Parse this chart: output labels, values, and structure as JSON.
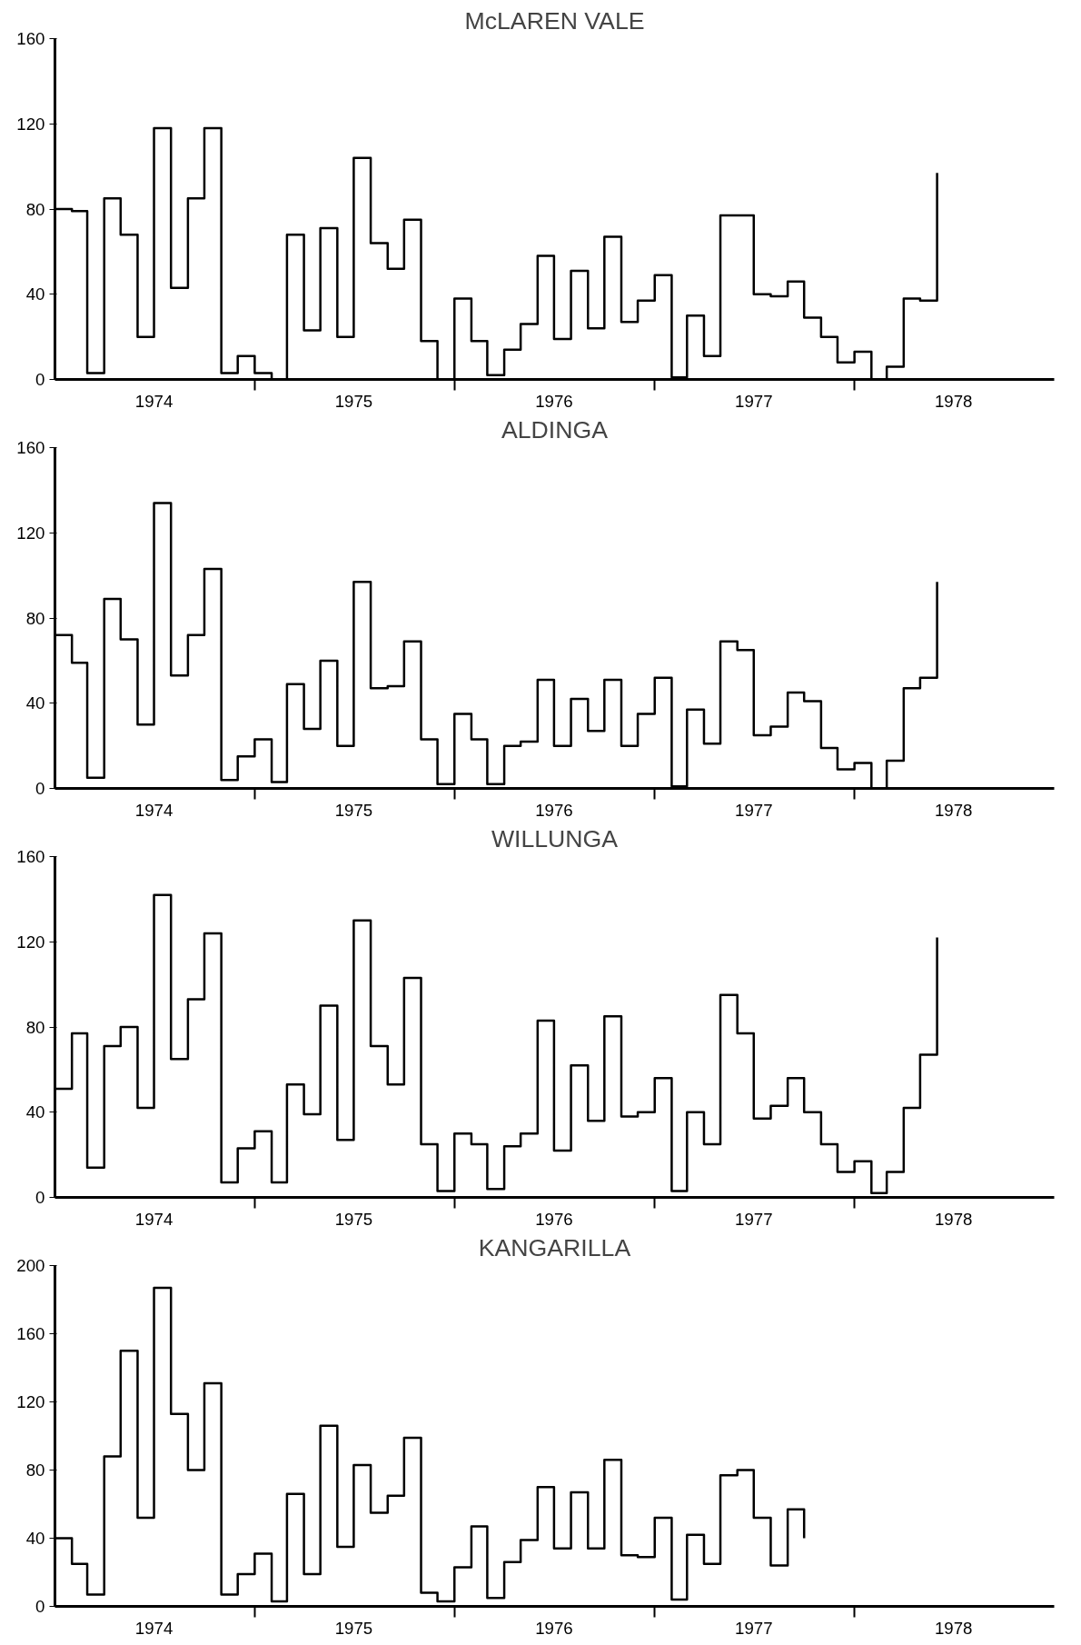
{
  "chart_data": [
    {
      "type": "step",
      "title": "McLAREN VALE",
      "color": "#000000",
      "x": [
        "1974-01",
        "1974-02",
        "1974-03",
        "1974-04",
        "1974-05",
        "1974-06",
        "1974-07",
        "1974-08",
        "1974-09",
        "1974-10",
        "1974-11",
        "1974-12",
        "1975-01",
        "1975-02",
        "1975-03",
        "1975-04",
        "1975-05",
        "1975-06",
        "1975-07",
        "1975-08",
        "1975-09",
        "1975-10",
        "1975-11",
        "1975-12",
        "1976-01",
        "1976-02",
        "1976-03",
        "1976-04",
        "1976-05",
        "1976-06",
        "1976-07",
        "1976-08",
        "1976-09",
        "1976-10",
        "1976-11",
        "1976-12",
        "1977-01",
        "1977-02",
        "1977-03",
        "1977-04",
        "1977-05",
        "1977-06",
        "1977-07",
        "1977-08",
        "1977-09",
        "1977-10",
        "1977-11",
        "1977-12",
        "1978-01",
        "1978-02",
        "1978-03",
        "1978-04",
        "1978-05",
        "1978-06"
      ],
      "values": [
        80,
        79,
        3,
        85,
        68,
        20,
        118,
        43,
        85,
        118,
        3,
        11,
        3,
        0,
        68,
        23,
        71,
        20,
        104,
        64,
        52,
        75,
        18,
        0,
        38,
        18,
        2,
        14,
        26,
        58,
        19,
        51,
        24,
        67,
        27,
        37,
        49,
        1,
        30,
        11,
        77,
        77,
        40,
        39,
        46,
        29,
        20,
        8,
        13,
        0,
        6,
        38,
        37,
        97
      ],
      "ylim": [
        0,
        160
      ],
      "yticks": [
        0,
        40,
        80,
        120,
        160
      ],
      "xlim": [
        "1974-01",
        "1979-01"
      ],
      "xticks": [
        {
          "value": "1974-07",
          "label": "1974"
        },
        {
          "value": "1975-07",
          "label": "1975"
        },
        {
          "value": "1976-07",
          "label": "1976"
        },
        {
          "value": "1977-07",
          "label": "1977"
        },
        {
          "value": "1978-07",
          "label": "1978"
        },
        {
          "value": "1975-01",
          "label": null
        },
        {
          "value": "1976-01",
          "label": null
        },
        {
          "value": "1977-01",
          "label": null
        },
        {
          "value": "1978-01",
          "label": null
        }
      ]
    },
    {
      "type": "step",
      "title": "ALDINGA",
      "color": "#000000",
      "x": [
        "1974-01",
        "1974-02",
        "1974-03",
        "1974-04",
        "1974-05",
        "1974-06",
        "1974-07",
        "1974-08",
        "1974-09",
        "1974-10",
        "1974-11",
        "1974-12",
        "1975-01",
        "1975-02",
        "1975-03",
        "1975-04",
        "1975-05",
        "1975-06",
        "1975-07",
        "1975-08",
        "1975-09",
        "1975-10",
        "1975-11",
        "1975-12",
        "1976-01",
        "1976-02",
        "1976-03",
        "1976-04",
        "1976-05",
        "1976-06",
        "1976-07",
        "1976-08",
        "1976-09",
        "1976-10",
        "1976-11",
        "1976-12",
        "1977-01",
        "1977-02",
        "1977-03",
        "1977-04",
        "1977-05",
        "1977-06",
        "1977-07",
        "1977-08",
        "1977-09",
        "1977-10",
        "1977-11",
        "1977-12",
        "1978-01",
        "1978-02",
        "1978-03",
        "1978-04",
        "1978-05",
        "1978-06"
      ],
      "values": [
        72,
        59,
        5,
        89,
        70,
        30,
        134,
        53,
        72,
        103,
        4,
        15,
        23,
        3,
        49,
        28,
        60,
        20,
        97,
        47,
        48,
        69,
        23,
        2,
        35,
        23,
        2,
        20,
        22,
        51,
        20,
        42,
        27,
        51,
        20,
        35,
        52,
        1,
        37,
        21,
        69,
        65,
        25,
        29,
        45,
        41,
        19,
        9,
        12,
        0,
        13,
        47,
        52,
        97
      ],
      "ylim": [
        0,
        160
      ],
      "yticks": [
        0,
        40,
        80,
        120,
        160
      ],
      "xlim": [
        "1974-01",
        "1979-01"
      ],
      "xticks": [
        {
          "value": "1974-07",
          "label": "1974"
        },
        {
          "value": "1975-07",
          "label": "1975"
        },
        {
          "value": "1976-07",
          "label": "1976"
        },
        {
          "value": "1977-07",
          "label": "1977"
        },
        {
          "value": "1978-07",
          "label": "1978"
        },
        {
          "value": "1975-01",
          "label": null
        },
        {
          "value": "1976-01",
          "label": null
        },
        {
          "value": "1977-01",
          "label": null
        },
        {
          "value": "1978-01",
          "label": null
        }
      ]
    },
    {
      "type": "step",
      "title": "WILLUNGA",
      "color": "#000000",
      "x": [
        "1974-01",
        "1974-02",
        "1974-03",
        "1974-04",
        "1974-05",
        "1974-06",
        "1974-07",
        "1974-08",
        "1974-09",
        "1974-10",
        "1974-11",
        "1974-12",
        "1975-01",
        "1975-02",
        "1975-03",
        "1975-04",
        "1975-05",
        "1975-06",
        "1975-07",
        "1975-08",
        "1975-09",
        "1975-10",
        "1975-11",
        "1975-12",
        "1976-01",
        "1976-02",
        "1976-03",
        "1976-04",
        "1976-05",
        "1976-06",
        "1976-07",
        "1976-08",
        "1976-09",
        "1976-10",
        "1976-11",
        "1976-12",
        "1977-01",
        "1977-02",
        "1977-03",
        "1977-04",
        "1977-05",
        "1977-06",
        "1977-07",
        "1977-08",
        "1977-09",
        "1977-10",
        "1977-11",
        "1977-12",
        "1978-01",
        "1978-02",
        "1978-03",
        "1978-04",
        "1978-05",
        "1978-06"
      ],
      "values": [
        51,
        77,
        14,
        71,
        80,
        42,
        142,
        65,
        93,
        124,
        7,
        23,
        31,
        7,
        53,
        39,
        90,
        27,
        130,
        71,
        53,
        103,
        25,
        3,
        30,
        25,
        4,
        24,
        30,
        83,
        22,
        62,
        36,
        85,
        38,
        40,
        56,
        3,
        40,
        25,
        95,
        77,
        37,
        43,
        56,
        40,
        25,
        12,
        17,
        2,
        12,
        42,
        67,
        122
      ],
      "ylim": [
        0,
        160
      ],
      "yticks": [
        0,
        40,
        80,
        120,
        160
      ],
      "xlim": [
        "1974-01",
        "1979-01"
      ],
      "xticks": [
        {
          "value": "1974-07",
          "label": "1974"
        },
        {
          "value": "1975-07",
          "label": "1975"
        },
        {
          "value": "1976-07",
          "label": "1976"
        },
        {
          "value": "1977-07",
          "label": "1977"
        },
        {
          "value": "1978-07",
          "label": "1978"
        },
        {
          "value": "1975-01",
          "label": null
        },
        {
          "value": "1976-01",
          "label": null
        },
        {
          "value": "1977-01",
          "label": null
        },
        {
          "value": "1978-01",
          "label": null
        }
      ]
    },
    {
      "type": "step",
      "title": "KANGARILLA",
      "color": "#000000",
      "x": [
        "1974-01",
        "1974-02",
        "1974-03",
        "1974-04",
        "1974-05",
        "1974-06",
        "1974-07",
        "1974-08",
        "1974-09",
        "1974-10",
        "1974-11",
        "1974-12",
        "1975-01",
        "1975-02",
        "1975-03",
        "1975-04",
        "1975-05",
        "1975-06",
        "1975-07",
        "1975-08",
        "1975-09",
        "1975-10",
        "1975-11",
        "1975-12",
        "1976-01",
        "1976-02",
        "1976-03",
        "1976-04",
        "1976-05",
        "1976-06",
        "1976-07",
        "1976-08",
        "1976-09",
        "1976-10",
        "1976-11",
        "1976-12",
        "1977-01",
        "1977-02",
        "1977-03",
        "1977-04",
        "1977-05",
        "1977-06",
        "1977-07",
        "1977-08",
        "1977-09",
        "1977-10"
      ],
      "values": [
        40,
        25,
        7,
        88,
        150,
        52,
        187,
        113,
        80,
        131,
        7,
        19,
        31,
        3,
        66,
        19,
        106,
        35,
        83,
        55,
        65,
        99,
        8,
        3,
        23,
        47,
        5,
        26,
        39,
        70,
        34,
        67,
        34,
        86,
        30,
        29,
        52,
        4,
        42,
        25,
        77,
        80,
        52,
        24,
        57,
        40
      ],
      "ylim": [
        0,
        200
      ],
      "yticks": [
        0,
        40,
        80,
        120,
        160,
        200
      ],
      "xlim": [
        "1974-01",
        "1979-01"
      ],
      "xticks": [
        {
          "value": "1974-07",
          "label": "1974"
        },
        {
          "value": "1975-07",
          "label": "1975"
        },
        {
          "value": "1976-07",
          "label": "1976"
        },
        {
          "value": "1977-07",
          "label": "1977"
        },
        {
          "value": "1978-07",
          "label": "1978"
        },
        {
          "value": "1975-01",
          "label": null
        },
        {
          "value": "1976-01",
          "label": null
        },
        {
          "value": "1977-01",
          "label": null
        },
        {
          "value": "1978-01",
          "label": null
        }
      ]
    }
  ]
}
